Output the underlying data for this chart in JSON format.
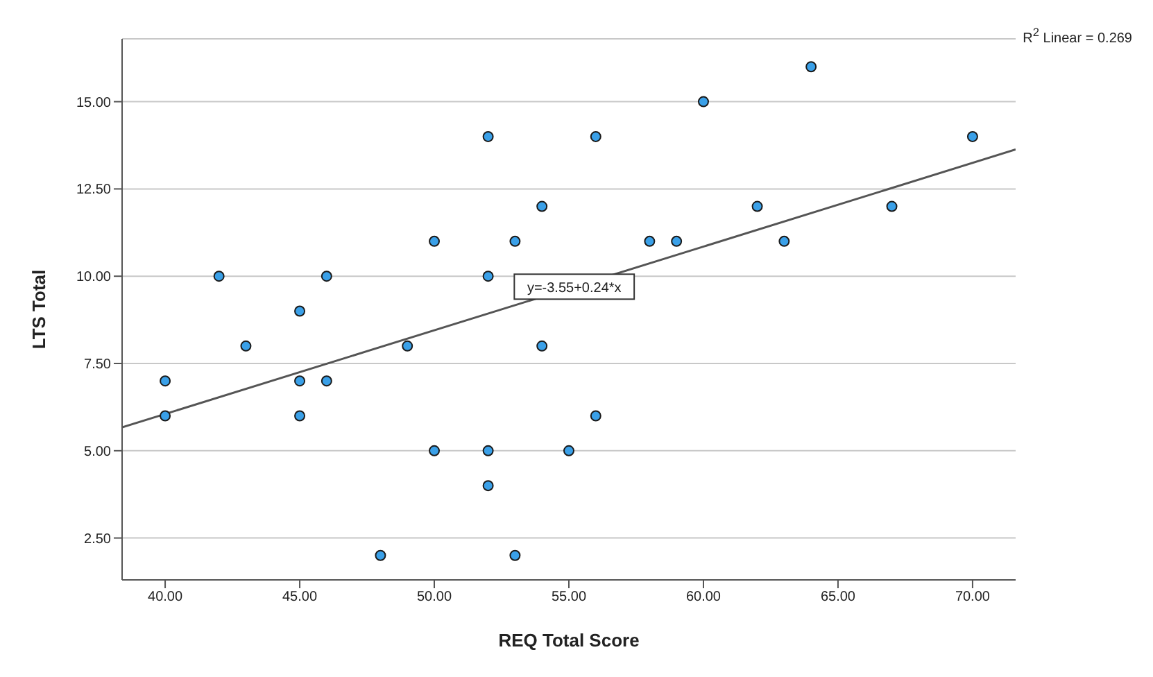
{
  "chart_data": {
    "type": "scatter",
    "xlabel": "REQ Total Score",
    "ylabel": "LTS Total",
    "xlim": [
      38.4,
      71.6
    ],
    "ylim": [
      1.3,
      16.8
    ],
    "xticks": [
      {
        "value": 40,
        "label": "40.00"
      },
      {
        "value": 45,
        "label": "45.00"
      },
      {
        "value": 50,
        "label": "50.00"
      },
      {
        "value": 55,
        "label": "55.00"
      },
      {
        "value": 60,
        "label": "60.00"
      },
      {
        "value": 65,
        "label": "65.00"
      },
      {
        "value": 70,
        "label": "70.00"
      }
    ],
    "yticks": [
      {
        "value": 2.5,
        "label": "2.50"
      },
      {
        "value": 5,
        "label": "5.00"
      },
      {
        "value": 7.5,
        "label": "7.50"
      },
      {
        "value": 10,
        "label": "10.00"
      },
      {
        "value": 12.5,
        "label": "12.50"
      },
      {
        "value": 15,
        "label": "15.00"
      }
    ],
    "grid": "y",
    "marker": "circle",
    "series": [
      {
        "color": "#3aa0e8",
        "x": [
          40,
          40,
          42,
          43,
          45,
          45,
          45,
          46,
          46,
          48,
          49,
          50,
          50,
          52,
          52,
          52,
          52,
          53,
          53,
          54,
          54,
          55,
          56,
          56,
          58,
          59,
          60,
          62,
          63,
          64,
          67,
          70
        ],
        "values": [
          7,
          6,
          10,
          8,
          9,
          7,
          6,
          10,
          7,
          2,
          8,
          11,
          5,
          14,
          10,
          5,
          4,
          11,
          2,
          12,
          8,
          5,
          14,
          6,
          11,
          11,
          15,
          12,
          11,
          16,
          12,
          14
        ]
      },
      {
        "type": "line",
        "marker": "none",
        "color": "#555555",
        "x": [
          38.4,
          71.6
        ],
        "values": [
          5.67,
          13.63
        ]
      }
    ],
    "annotations": [
      "R$^{2}$ Linear = 0.269",
      {
        "text": "y=-3.55+0.24*x",
        "x": 55.2,
        "y": 9.7
      }
    ]
  }
}
